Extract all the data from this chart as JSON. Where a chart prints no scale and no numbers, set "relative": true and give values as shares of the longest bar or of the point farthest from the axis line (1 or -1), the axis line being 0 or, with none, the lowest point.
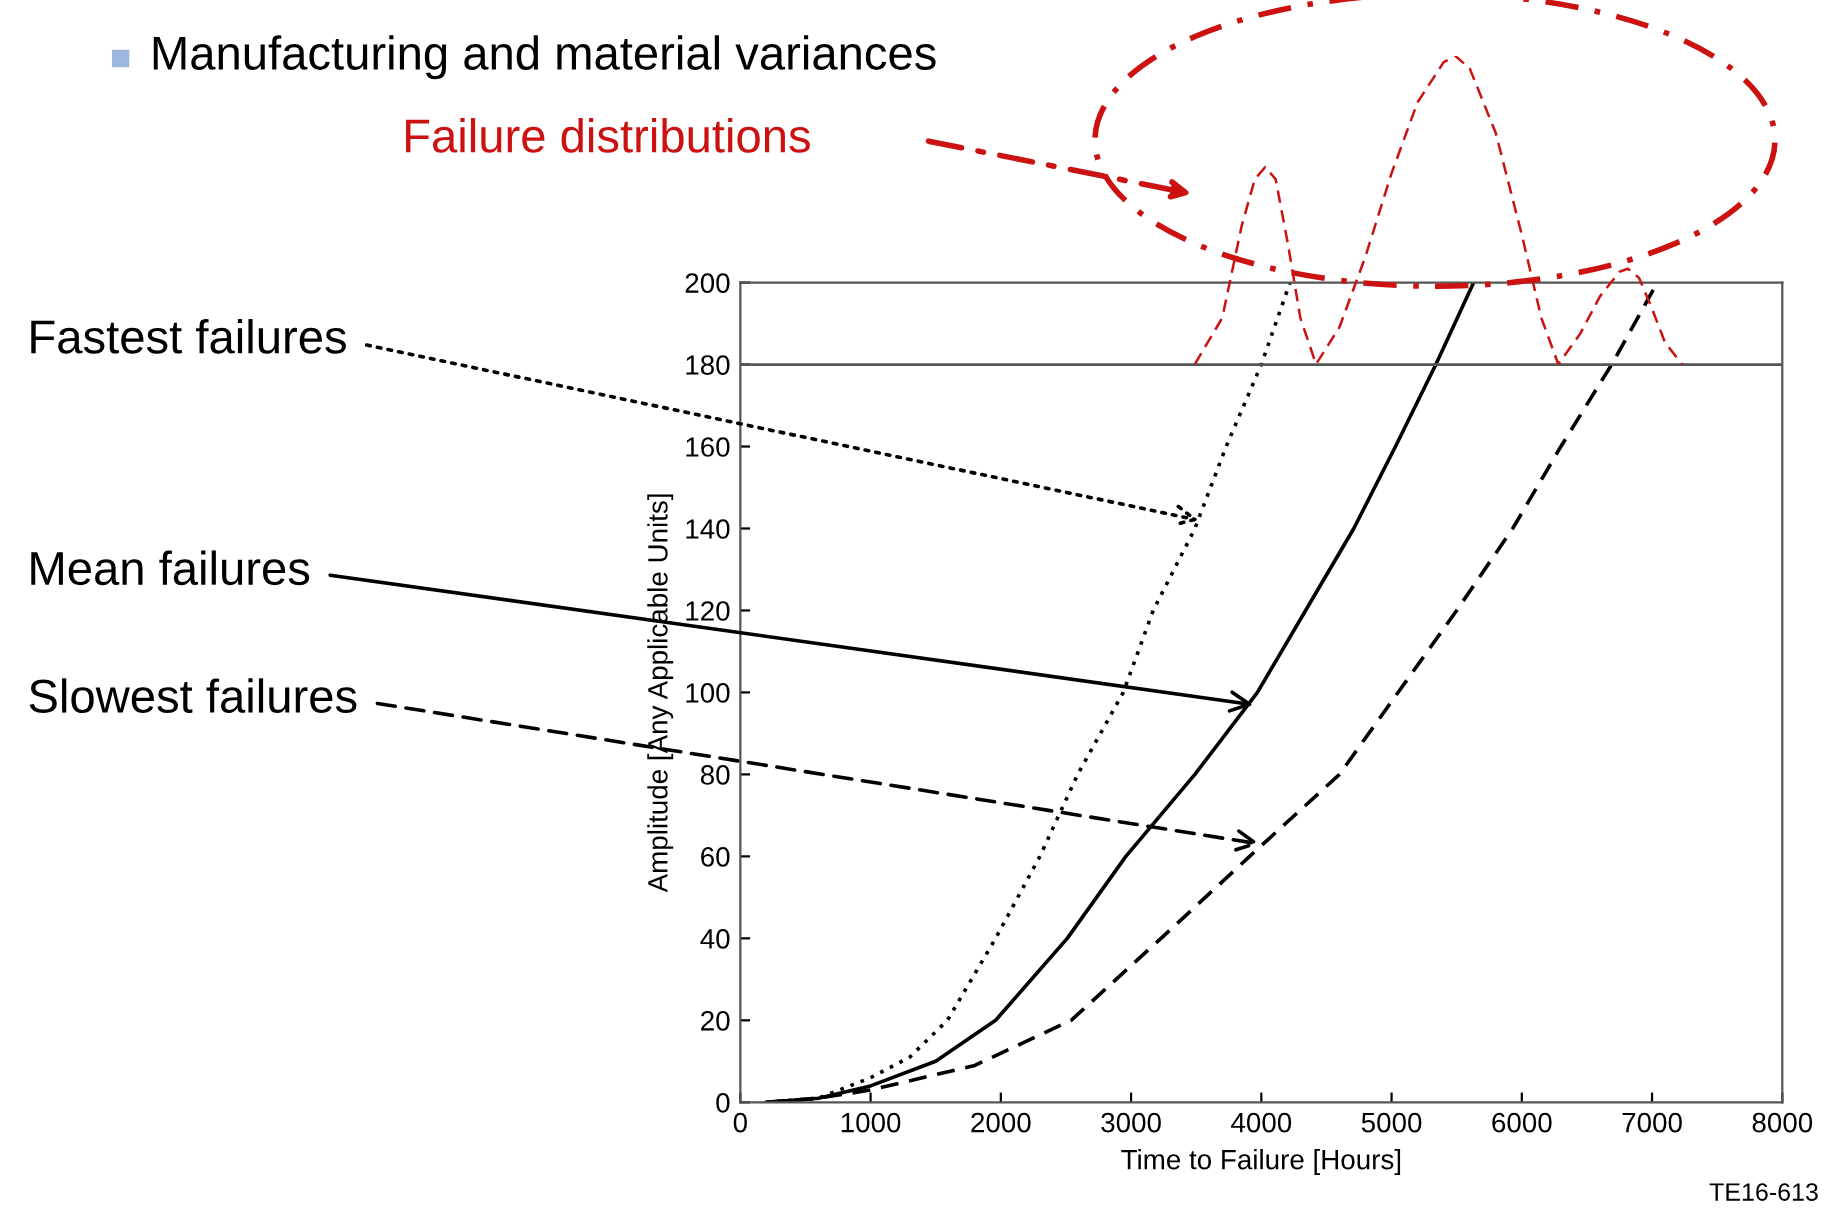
{
  "chart_data": [
    {
      "type": "line",
      "title": "Manufacturing and material variances",
      "xlabel": "Time to Failure [Hours]",
      "ylabel": "Amplitude [Any Applicable Units]",
      "series": [
        {
          "color": "#000000",
          "line_style": "dotted",
          "x": [
            200,
            600,
            1000,
            1300,
            1590,
            1960,
            2300,
            2590,
            2940,
            3170,
            3490,
            3730,
            4000,
            4220
          ],
          "values": [
            0,
            1,
            6,
            11,
            20,
            40,
            60,
            80,
            100,
            120,
            140,
            160,
            180,
            200
          ]
        },
        {
          "color": "#000000",
          "line_style": "solid",
          "x": [
            200,
            600,
            1000,
            1500,
            1960,
            2510,
            2960,
            3490,
            3970,
            4340,
            4710,
            5030,
            5340,
            5630
          ],
          "values": [
            0,
            1,
            4,
            10,
            20,
            40,
            60,
            80,
            100,
            120,
            140,
            160,
            180,
            200
          ]
        },
        {
          "color": "#000000",
          "line_style": "dashed",
          "x": [
            200,
            600,
            1000,
            1800,
            2540,
            3230,
            3910,
            4600,
            5050,
            5500,
            5930,
            6300,
            6690,
            7040
          ],
          "values": [
            0,
            1,
            3,
            9,
            20,
            40,
            60,
            80,
            100,
            120,
            140,
            160,
            180,
            200
          ]
        }
      ],
      "annotations": [
        {
          "text": "Fastest failures",
          "x": 3520,
          "y": 142
        },
        {
          "text": "Mean failures",
          "x": 3940,
          "y": 97
        },
        {
          "text": "Slowest failures",
          "x": 3990,
          "y": 63
        },
        "TE16-613"
      ],
      "ref_lines": [
        {
          "axis": "y",
          "value": 180,
          "color": "#555555"
        }
      ],
      "xlim": [
        0,
        8000
      ],
      "xticks": [
        0,
        1000,
        2000,
        3000,
        4000,
        5000,
        6000,
        7000,
        8000
      ],
      "ylim": [
        0,
        200
      ],
      "yticks": [
        0,
        20,
        40,
        60,
        80,
        100,
        120,
        140,
        160,
        180,
        200
      ],
      "grid": false,
      "legend": false,
      "marker": "none"
    },
    {
      "type": "line",
      "relative": true,
      "annotations": [
        "Failure distributions"
      ],
      "series": [
        {
          "color": "#cc1111",
          "line_style": "dashed",
          "x": [
            3490,
            3700,
            3850,
            3950,
            4030,
            4110,
            4200,
            4300,
            4420,
            4600,
            4800,
            5000,
            5200,
            5400,
            5490,
            5600,
            5800,
            6000,
            6150,
            6280,
            6450,
            6600,
            6750,
            6815,
            6900,
            7000,
            7100,
            7230
          ],
          "values": [
            0,
            0.15,
            0.45,
            0.6,
            0.64,
            0.6,
            0.4,
            0.15,
            0,
            0.12,
            0.35,
            0.62,
            0.85,
            0.98,
            1,
            0.96,
            0.75,
            0.42,
            0.15,
            0,
            0.1,
            0.22,
            0.3,
            0.31,
            0.28,
            0.18,
            0.07,
            0
          ]
        }
      ],
      "xlim": [
        0,
        8000
      ],
      "grid": false,
      "legend": false,
      "marker": "none"
    }
  ]
}
